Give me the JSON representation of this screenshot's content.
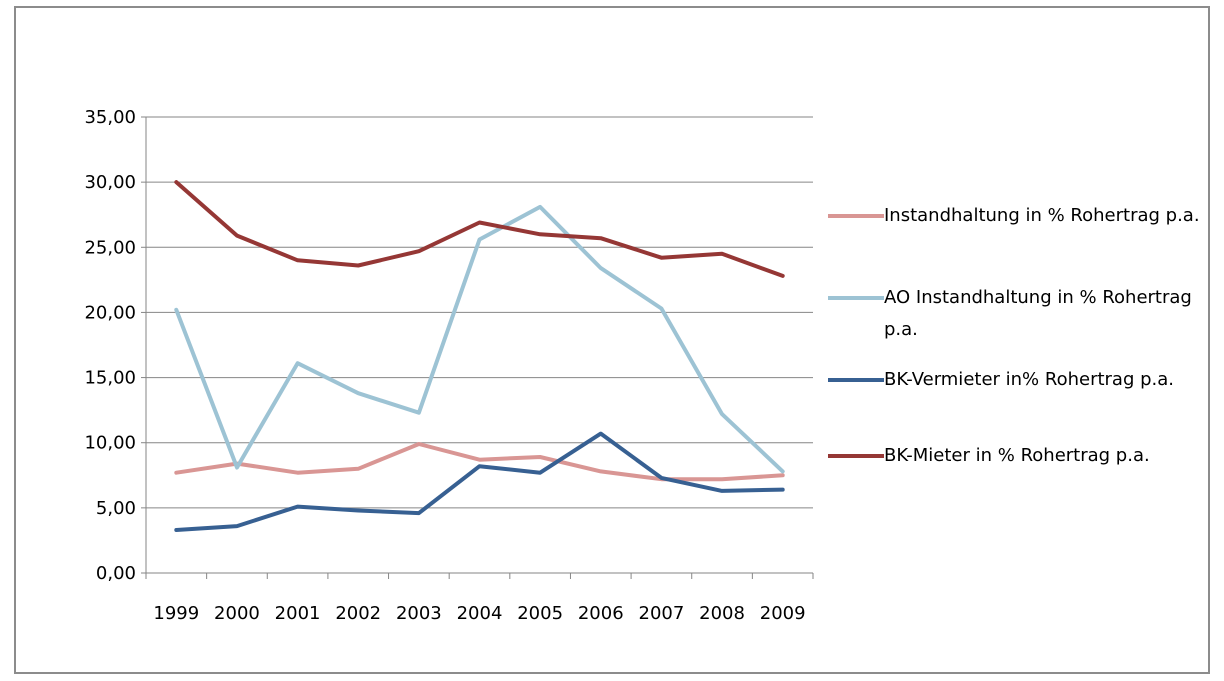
{
  "chart_data": {
    "type": "line",
    "title": "",
    "xlabel": "",
    "ylabel": "",
    "categories": [
      "1999",
      "2000",
      "2001",
      "2002",
      "2003",
      "2004",
      "2005",
      "2006",
      "2007",
      "2008",
      "2009"
    ],
    "ylim": [
      0,
      35
    ],
    "yticks": [
      "0,00",
      "5,00",
      "10,00",
      "15,00",
      "20,00",
      "25,00",
      "30,00",
      "35,00"
    ],
    "grid": true,
    "legend_position": "right",
    "series": [
      {
        "name": "Instandhaltung in % Rohertrag p.a.",
        "color": "#d99694",
        "values": [
          7.7,
          8.4,
          7.7,
          8.0,
          9.9,
          8.7,
          8.9,
          7.8,
          7.2,
          7.2,
          7.5
        ]
      },
      {
        "name": "AO Instandhaltung in % Rohertrag p.a.",
        "color": "#9dc3d4",
        "values": [
          20.2,
          8.1,
          16.1,
          13.8,
          12.3,
          25.6,
          28.1,
          23.4,
          20.3,
          12.2,
          7.8
        ]
      },
      {
        "name": "BK-Vermieter in% Rohertrag p.a.",
        "color": "#376092",
        "values": [
          3.3,
          3.6,
          5.1,
          4.8,
          4.6,
          8.2,
          7.7,
          10.7,
          7.3,
          6.3,
          6.4
        ]
      },
      {
        "name": "BK-Mieter in % Rohertrag p.a.",
        "color": "#953735",
        "values": [
          30.0,
          25.9,
          24.0,
          23.6,
          24.7,
          26.9,
          26.0,
          25.7,
          24.2,
          24.5,
          22.8
        ]
      }
    ]
  }
}
